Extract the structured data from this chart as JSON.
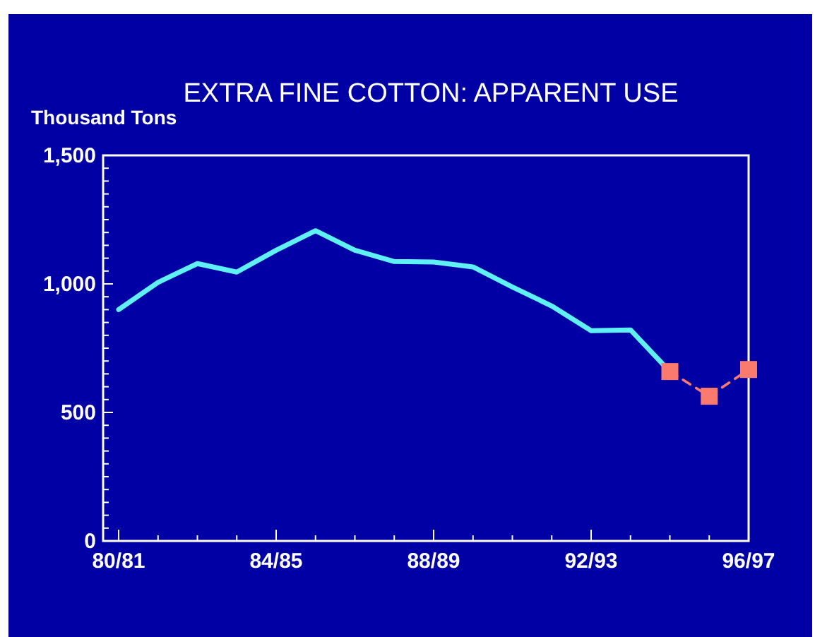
{
  "chart_data": {
    "type": "line",
    "title": "EXTRA FINE COTTON: APPARENT USE",
    "ylabel": "Thousand Tons",
    "categories": [
      "80/81",
      null,
      null,
      null,
      "84/85",
      null,
      null,
      null,
      "88/89",
      null,
      null,
      null,
      "92/93",
      null,
      null,
      null,
      "96/97"
    ],
    "series": [
      {
        "color": "#5ef0f5",
        "line_style": "solid",
        "marker": "none",
        "values": [
          900,
          1006,
          1079,
          1046,
          1131,
          1207,
          1131,
          1087,
          1085,
          1066,
          988,
          914,
          818,
          821,
          659,
          null,
          null
        ]
      },
      {
        "color": "#fa7a6e",
        "line_style": "dashed",
        "marker": "square",
        "values": [
          null,
          null,
          null,
          null,
          null,
          null,
          null,
          null,
          null,
          null,
          null,
          null,
          null,
          null,
          659,
          563,
          667
        ]
      }
    ],
    "ylim": [
      0,
      1500
    ],
    "yticks": [
      0,
      {
        "value": 50,
        "label": null
      },
      {
        "value": 100,
        "label": null
      },
      {
        "value": 150,
        "label": null
      },
      {
        "value": 200,
        "label": null
      },
      {
        "value": 250,
        "label": null
      },
      {
        "value": 300,
        "label": null
      },
      {
        "value": 350,
        "label": null
      },
      {
        "value": 400,
        "label": null
      },
      {
        "value": 450,
        "label": null
      },
      500,
      {
        "value": 550,
        "label": null
      },
      {
        "value": 600,
        "label": null
      },
      {
        "value": 650,
        "label": null
      },
      {
        "value": 700,
        "label": null
      },
      {
        "value": 750,
        "label": null
      },
      {
        "value": 800,
        "label": null
      },
      {
        "value": 850,
        "label": null
      },
      {
        "value": 900,
        "label": null
      },
      {
        "value": 950,
        "label": null
      },
      {
        "value": 1000,
        "label": "1,000"
      },
      {
        "value": 1050,
        "label": null
      },
      {
        "value": 1100,
        "label": null
      },
      {
        "value": 1150,
        "label": null
      },
      {
        "value": 1200,
        "label": null
      },
      {
        "value": 1250,
        "label": null
      },
      {
        "value": 1300,
        "label": null
      },
      {
        "value": 1350,
        "label": null
      },
      {
        "value": 1400,
        "label": null
      },
      {
        "value": 1450,
        "label": null
      },
      {
        "value": 1500,
        "label": "1,500"
      }
    ],
    "grid": false
  }
}
